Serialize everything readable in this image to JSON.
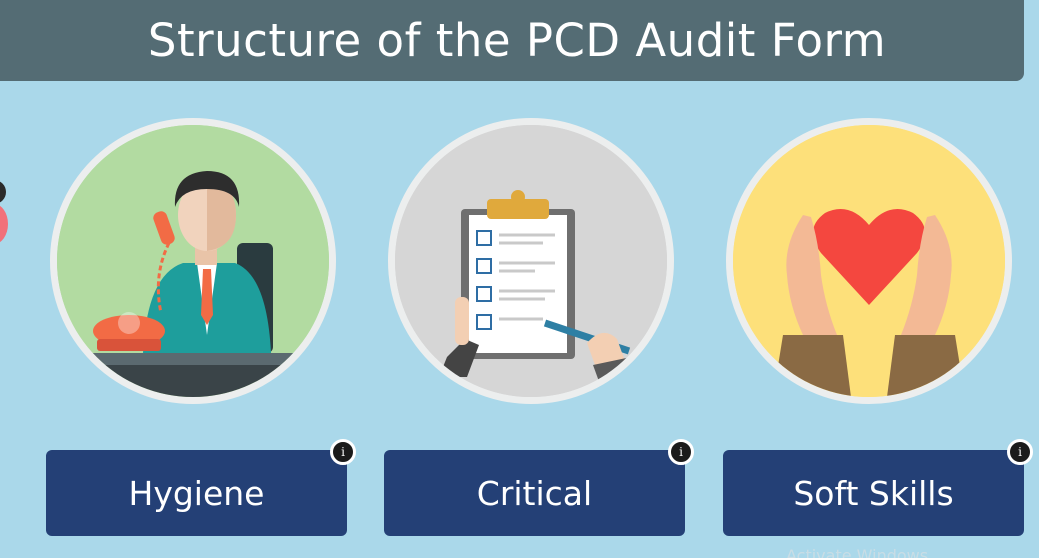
{
  "header": {
    "title": "Structure of the PCD Audit Form"
  },
  "cards": [
    {
      "label": "Hygiene",
      "info_glyph": "i",
      "icon": "phone-call-businessman-icon",
      "circle_color": "#b2dba1"
    },
    {
      "label": "Critical",
      "info_glyph": "i",
      "icon": "clipboard-checklist-icon",
      "circle_color": "#d6d6d6"
    },
    {
      "label": "Soft Skills",
      "info_glyph": "i",
      "icon": "heart-hands-icon",
      "circle_color": "#fde07a"
    }
  ],
  "watermark": "Activate Windows",
  "colors": {
    "background": "#aad8ea",
    "title_bar": "#546c74",
    "card": "#244076"
  }
}
